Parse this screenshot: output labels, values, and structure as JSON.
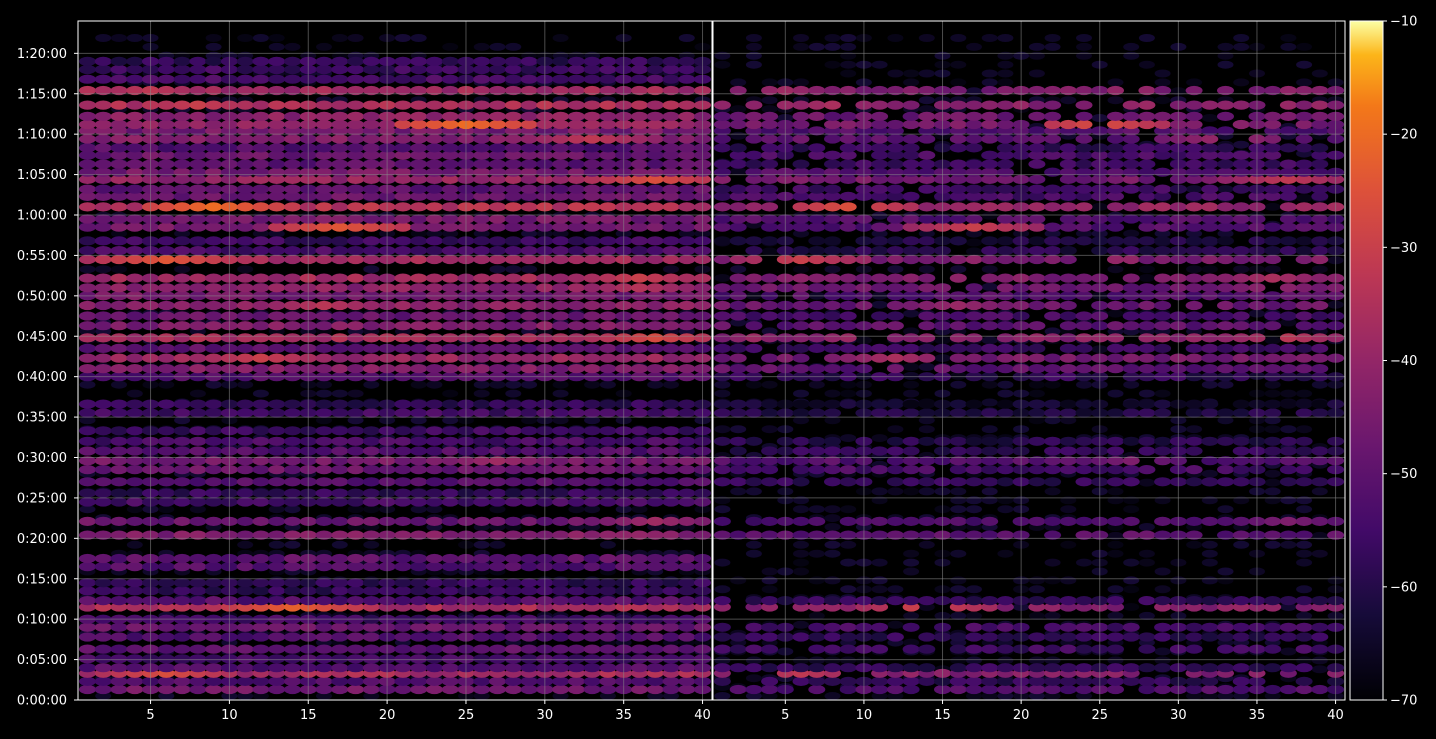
{
  "chart_data": {
    "type": "heatmap",
    "title": "",
    "xlabel": "",
    "ylabel": "",
    "grid": true,
    "colormap": "inferno",
    "background": "#000000",
    "grid_color": "#8a8a8a",
    "x_ticks": {
      "left_panel": [
        "5",
        "10",
        "15",
        "20",
        "25",
        "30",
        "35",
        "40"
      ],
      "right_panel": [
        "5",
        "10",
        "15",
        "20",
        "25",
        "30",
        "35",
        "40"
      ]
    },
    "y_ticks": [
      "0:00:00",
      "0:05:00",
      "0:10:00",
      "0:15:00",
      "0:20:00",
      "0:25:00",
      "0:30:00",
      "0:35:00",
      "0:40:00",
      "0:45:00",
      "0:50:00",
      "0:55:00",
      "1:00:00",
      "1:05:00",
      "1:10:00",
      "1:15:00",
      "1:20:00"
    ],
    "x_range": [
      1,
      40
    ],
    "y_range_minutes": [
      0,
      84
    ],
    "colorbar": {
      "ticks": [
        "−70",
        "−60",
        "−50",
        "−40",
        "−30",
        "−20",
        "−10"
      ],
      "range": [
        -70,
        -10
      ]
    },
    "rows": [
      {
        "t": 1.3,
        "level": -47,
        "panels": "both"
      },
      {
        "t": 2.3,
        "level": -52,
        "panels": "both"
      },
      {
        "t": 3.3,
        "level": -37,
        "panels": "both",
        "peak": -26,
        "peak_x": 6
      },
      {
        "t": 4.0,
        "level": -52,
        "panels": "both"
      },
      {
        "t": 5.1,
        "level": -55,
        "panels": "left"
      },
      {
        "t": 6.3,
        "level": -50,
        "panels": "both"
      },
      {
        "t": 7.8,
        "level": -52,
        "panels": "both"
      },
      {
        "t": 9.0,
        "level": -48,
        "panels": "both"
      },
      {
        "t": 10.0,
        "level": -55,
        "panels": "left"
      },
      {
        "t": 11.5,
        "level": -36,
        "panels": "both",
        "peak": -22,
        "peak_x": 14
      },
      {
        "t": 12.3,
        "level": -52,
        "panels": "both"
      },
      {
        "t": 13.5,
        "level": -58,
        "panels": "left"
      },
      {
        "t": 14.5,
        "level": -58,
        "panels": "left"
      },
      {
        "t": 16.5,
        "level": -52,
        "panels": "left"
      },
      {
        "t": 17.5,
        "level": -50,
        "panels": "left"
      },
      {
        "t": 20.4,
        "level": -44,
        "panels": "both"
      },
      {
        "t": 22.1,
        "level": -48,
        "panels": "both",
        "peak": -38,
        "peak_x": 37
      },
      {
        "t": 24.5,
        "level": -55,
        "panels": "left"
      },
      {
        "t": 25.6,
        "level": -58,
        "panels": "left"
      },
      {
        "t": 27.0,
        "level": -52,
        "panels": "both"
      },
      {
        "t": 28.5,
        "level": -48,
        "panels": "both"
      },
      {
        "t": 29.6,
        "level": -46,
        "panels": "both",
        "peak": -38,
        "peak_x": 27
      },
      {
        "t": 30.8,
        "level": -52,
        "panels": "both"
      },
      {
        "t": 32.0,
        "level": -54,
        "panels": "both"
      },
      {
        "t": 33.3,
        "level": -56,
        "panels": "left"
      },
      {
        "t": 35.5,
        "level": -55,
        "panels": "both"
      },
      {
        "t": 36.6,
        "level": -58,
        "panels": "both"
      },
      {
        "t": 40.0,
        "level": -52,
        "panels": "both"
      },
      {
        "t": 41.0,
        "level": -44,
        "panels": "both"
      },
      {
        "t": 42.3,
        "level": -40,
        "panels": "both",
        "peak": -30,
        "peak_x": 12
      },
      {
        "t": 43.5,
        "level": -50,
        "panels": "both"
      },
      {
        "t": 44.8,
        "level": -36,
        "panels": "both",
        "peak": -27,
        "peak_x": 37
      },
      {
        "t": 46.3,
        "level": -44,
        "panels": "both"
      },
      {
        "t": 47.5,
        "level": -48,
        "panels": "both"
      },
      {
        "t": 48.8,
        "level": -42,
        "panels": "both",
        "peak": -33,
        "peak_x": 16
      },
      {
        "t": 50.0,
        "level": -46,
        "panels": "both"
      },
      {
        "t": 51.0,
        "level": -42,
        "panels": "both",
        "peak": -34,
        "peak_x": 36
      },
      {
        "t": 52.2,
        "level": -38,
        "panels": "both",
        "peak": -30,
        "peak_x": 36
      },
      {
        "t": 54.5,
        "level": -38,
        "panels": "both",
        "peak": -24,
        "peak_x": 6
      },
      {
        "t": 55.6,
        "level": -54,
        "panels": "both"
      },
      {
        "t": 56.8,
        "level": -56,
        "panels": "both"
      },
      {
        "t": 58.5,
        "level": -46,
        "panels": "both",
        "peak": -24,
        "peak_x": 17
      },
      {
        "t": 59.5,
        "level": -46,
        "panels": "both"
      },
      {
        "t": 61.0,
        "level": -34,
        "panels": "both",
        "peak": -20,
        "peak_x": 9
      },
      {
        "t": 62.3,
        "level": -48,
        "panels": "both"
      },
      {
        "t": 63.2,
        "level": -50,
        "panels": "both"
      },
      {
        "t": 64.4,
        "level": -40,
        "panels": "both",
        "peak": -26,
        "peak_x": 37
      },
      {
        "t": 65.3,
        "level": -46,
        "panels": "both"
      },
      {
        "t": 66.3,
        "level": -50,
        "panels": "both"
      },
      {
        "t": 67.4,
        "level": -48,
        "panels": "both"
      },
      {
        "t": 68.3,
        "level": -52,
        "panels": "both"
      },
      {
        "t": 69.4,
        "level": -44,
        "panels": "both",
        "peak": -32,
        "peak_x": 33
      },
      {
        "t": 70.4,
        "level": -46,
        "panels": "both"
      },
      {
        "t": 71.2,
        "level": -40,
        "panels": "both",
        "peak": -20,
        "peak_x": 25
      },
      {
        "t": 72.2,
        "level": -42,
        "panels": "both"
      },
      {
        "t": 73.6,
        "level": -36,
        "panels": "both",
        "peak": -30,
        "peak_x": 8
      },
      {
        "t": 75.4,
        "level": -38,
        "panels": "both",
        "peak": -32,
        "peak_x": 5
      },
      {
        "t": 76.8,
        "level": -54,
        "panels": "left"
      },
      {
        "t": 78.0,
        "level": -56,
        "panels": "left"
      },
      {
        "t": 79.0,
        "level": -58,
        "panels": "left"
      }
    ]
  }
}
